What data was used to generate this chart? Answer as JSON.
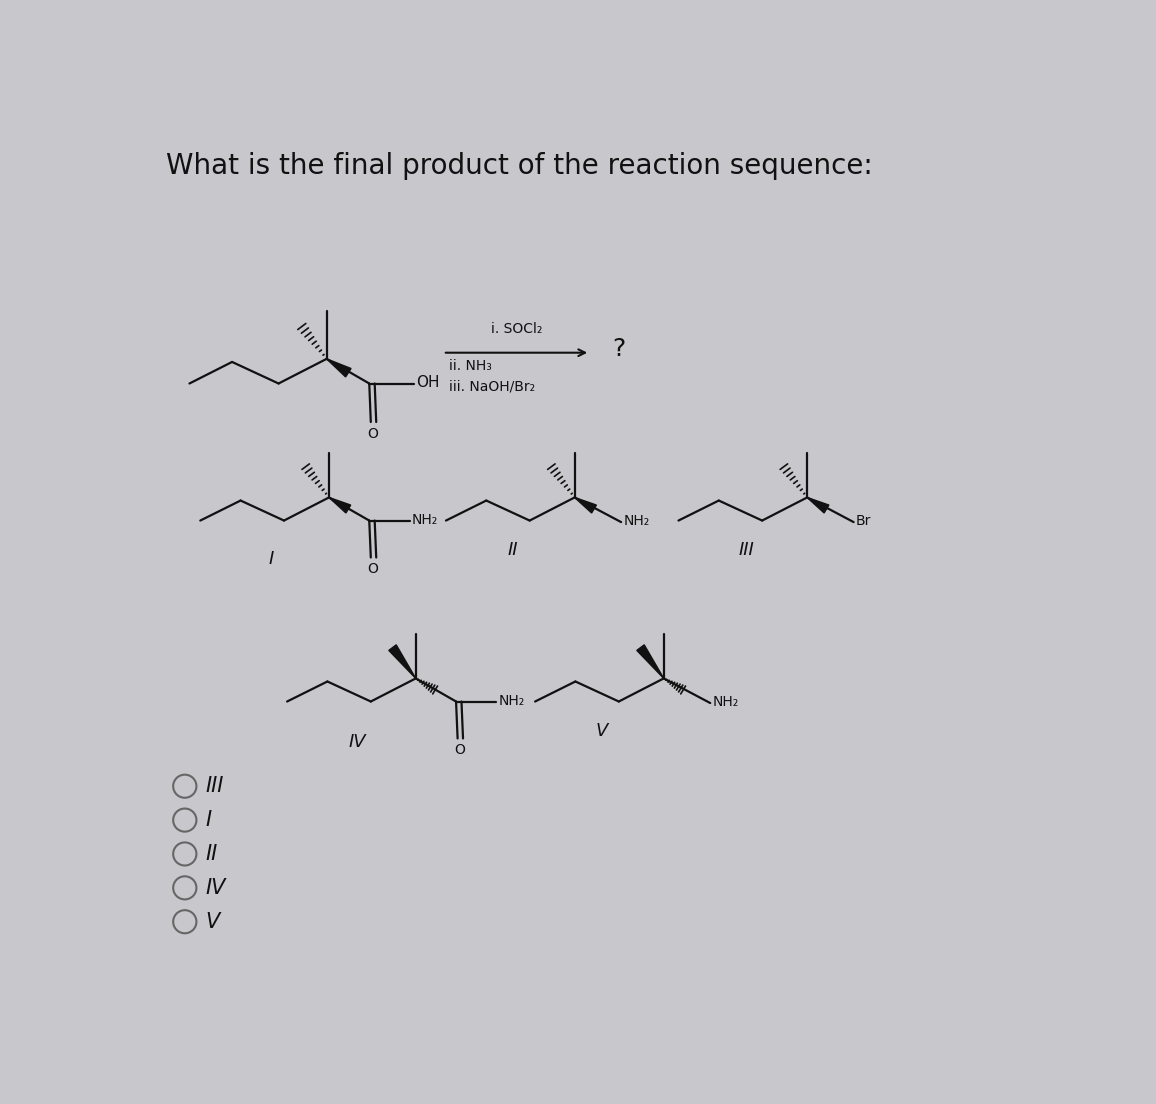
{
  "title": "What is the final product of the reaction sequence:",
  "title_fontsize": 20,
  "bg_color": "#c8c8cc",
  "text_color": "#111111",
  "reaction_conditions_1": "i. SOCl₂",
  "reaction_conditions_2": "ii. NH₃",
  "reaction_conditions_3": "iii. NaOH/Br₂",
  "answer_choices": [
    "III",
    "I",
    "II",
    "IV",
    "V"
  ],
  "fig_width": 11.56,
  "fig_height": 11.04
}
